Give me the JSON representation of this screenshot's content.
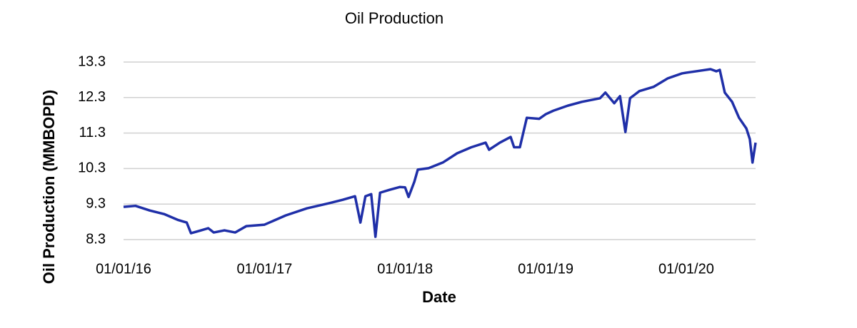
{
  "chart_data": {
    "type": "line",
    "title": "Oil Production",
    "x_label": "Date",
    "y_label": "Oil Production (MMBOPD)",
    "x": [
      "2016-01-01",
      "2016-02-01",
      "2016-03-09",
      "2016-04-15",
      "2016-05-22",
      "2016-06-13",
      "2016-06-24",
      "2016-07-17",
      "2016-08-08",
      "2016-08-22",
      "2016-09-19",
      "2016-10-17",
      "2016-11-15",
      "2017-01-01",
      "2017-02-25",
      "2017-04-21",
      "2017-06-16",
      "2017-07-23",
      "2017-08-24",
      "2017-09-07",
      "2017-09-20",
      "2017-10-05",
      "2017-10-16",
      "2017-10-28",
      "2017-11-21",
      "2017-12-18",
      "2018-01-01",
      "2018-01-10",
      "2018-01-25",
      "2018-02-03",
      "2018-03-03",
      "2018-04-09",
      "2018-05-16",
      "2018-06-22",
      "2018-07-29",
      "2018-08-07",
      "2018-09-04",
      "2018-10-02",
      "2018-10-11",
      "2018-10-26",
      "2018-11-13",
      "2018-12-15",
      "2019-01-01",
      "2019-01-21",
      "2019-02-27",
      "2019-04-05",
      "2019-05-22",
      "2019-06-05",
      "2019-06-28",
      "2019-07-13",
      "2019-07-27",
      "2019-08-08",
      "2019-09-01",
      "2019-10-08",
      "2019-11-14",
      "2019-12-21",
      "2020-01-01",
      "2020-01-27",
      "2020-03-04",
      "2020-03-19",
      "2020-03-28",
      "2020-04-10",
      "2020-04-29",
      "2020-05-17",
      "2020-06-05",
      "2020-06-14",
      "2020-06-21",
      "2020-06-29"
    ],
    "series": [
      {
        "name": "Oil Production",
        "color": "#1f2fa8",
        "values": [
          9.22,
          9.25,
          9.12,
          9.02,
          8.85,
          8.78,
          8.48,
          8.55,
          8.62,
          8.5,
          8.56,
          8.5,
          8.68,
          8.72,
          8.98,
          9.18,
          9.32,
          9.42,
          9.52,
          8.78,
          9.52,
          9.58,
          8.38,
          9.62,
          9.7,
          9.78,
          9.77,
          9.5,
          9.93,
          10.27,
          10.31,
          10.47,
          10.73,
          10.9,
          11.03,
          10.83,
          11.03,
          11.19,
          10.9,
          10.9,
          11.73,
          11.7,
          11.83,
          11.93,
          12.07,
          12.18,
          12.28,
          12.44,
          12.14,
          12.34,
          11.33,
          12.28,
          12.48,
          12.6,
          12.84,
          12.98,
          13.0,
          13.04,
          13.1,
          13.04,
          13.08,
          12.44,
          12.18,
          11.73,
          11.43,
          11.13,
          10.47,
          11.03
        ]
      }
    ],
    "xlim": [
      "2016-01-01",
      "2020-06-29"
    ],
    "xticks": [
      {
        "value": "2016-01-01",
        "label": "01/01/16"
      },
      {
        "value": "2017-01-01",
        "label": "01/01/17"
      },
      {
        "value": "2018-01-01",
        "label": "01/01/18"
      },
      {
        "value": "2019-01-01",
        "label": "01/01/19"
      },
      {
        "value": "2020-01-01",
        "label": "01/01/20"
      }
    ],
    "ylim": [
      8.3,
      13.3
    ],
    "yticks": [
      8.3,
      9.3,
      10.3,
      11.3,
      12.3,
      13.3
    ],
    "grid": true
  }
}
